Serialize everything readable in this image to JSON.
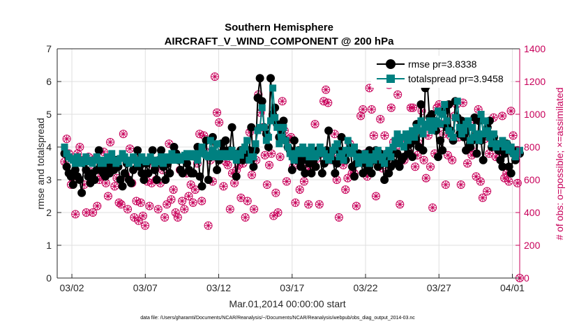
{
  "chart_data": {
    "type": "line",
    "title": "Southern Hemisphere",
    "subtitle": "AIRCRAFT_V_WIND_COMPONENT @ 200 hPa",
    "xlabel": "Mar.01,2014 00:00:00 start",
    "ylabel_left": "rmse and totalspread",
    "ylabel_right": "# of obs: o=possible; ×=assimilated",
    "xlim": [
      0,
      31.5
    ],
    "ylim_left": [
      0,
      7
    ],
    "ylim_right": [
      0,
      1400
    ],
    "x_tick_labels": [
      "03/02",
      "03/07",
      "03/12",
      "03/17",
      "03/22",
      "03/27",
      "04/01"
    ],
    "x_tick_values": [
      1,
      6,
      11,
      16,
      21,
      26,
      31
    ],
    "y_ticks_left": [
      "0",
      "1",
      "2",
      "3",
      "4",
      "5",
      "6",
      "7"
    ],
    "y_ticks_right": [
      "0",
      "200",
      "400",
      "600",
      "800",
      "1000",
      "1200",
      "1400"
    ],
    "grid": true,
    "legend_position": "top-right",
    "colors": {
      "rmse": "#000000",
      "spread": "#008080",
      "obs": "#c8005a",
      "axis": "#262626"
    },
    "series": [
      {
        "name": "rmse pr=3.8338",
        "axis": "left",
        "marker": "circle",
        "values": [
          3.8,
          3.4,
          3.2,
          3.1,
          2.85,
          3.3,
          3.1,
          3.0,
          2.6,
          3.5,
          3.3,
          3.1,
          2.9,
          3.2,
          3.0,
          3.3,
          3.9,
          3.3,
          3.2,
          3.1,
          3.4,
          3.2,
          3.5,
          3.3,
          3.6,
          3.4,
          3.0,
          2.8,
          3.2,
          3.5,
          3.0,
          2.9,
          3.3,
          3.6,
          3.9,
          3.4,
          3.2,
          3.0,
          3.5,
          3.2,
          3.6,
          3.9,
          3.3,
          3.0,
          3.6,
          3.9,
          3.4,
          3.0,
          3.5,
          3.2,
          3.7,
          4.0,
          3.8,
          3.6,
          3.3,
          3.2,
          3.7,
          3.5,
          3.3,
          3.2,
          3.2,
          3.7,
          4.0,
          3.1,
          2.8,
          3.8,
          4.2,
          3.0,
          3.7,
          4.3,
          3.8,
          3.3,
          3.6,
          4.1,
          3.9,
          4.2,
          3.8,
          3.9,
          4.6,
          3.8,
          3.1,
          3.6,
          3.9,
          3.6,
          3.7,
          3.8,
          3.9,
          4.6,
          3.4,
          3.9,
          5.5,
          6.1,
          5.4,
          4.6,
          4.4,
          4.0,
          6.1,
          5.0,
          5.2,
          4.7,
          4.3,
          4.5,
          4.8,
          4.2,
          4.0,
          3.9,
          3.3,
          4.2,
          3.6,
          3.9,
          3.4,
          3.6,
          3.2,
          3.8,
          3.5,
          3.2,
          3.6,
          3.4,
          3.9,
          3.8,
          3.2,
          3.5,
          3.9,
          4.5,
          3.8,
          3.6,
          3.2,
          3.5,
          3.9,
          4.3,
          3.7,
          3.6,
          3.9,
          4.0,
          3.4,
          3.1,
          3.5,
          3.8,
          3.6,
          3.2,
          3.5,
          3.3,
          3.9,
          3.2,
          3.6,
          3.9,
          3.4,
          3.8,
          3.5,
          3.0,
          3.6,
          3.2,
          3.4,
          3.8,
          3.5,
          3.8,
          3.4,
          3.6,
          3.7,
          4.0,
          3.8,
          4.1,
          3.7,
          4.2,
          4.7,
          4.0,
          5.3,
          3.9,
          5.8,
          5.9,
          4.9,
          5.0,
          4.8,
          4.5,
          3.7,
          4.2,
          3.9,
          5.1,
          4.6,
          5.3,
          4.5,
          4.2,
          5.4,
          4.9,
          4.4,
          4.8,
          4.3,
          3.9,
          4.6,
          4.0,
          4.2,
          4.9,
          3.8,
          4.8,
          4.2,
          3.6,
          4.4,
          4.6,
          4.8,
          4.0,
          4.3,
          4.1,
          3.9,
          3.6,
          3.4,
          3.8,
          4.1,
          3.4,
          3.2,
          3.8,
          3.6,
          3.9,
          3.8
        ]
      },
      {
        "name": "totalspread pr=3.9458",
        "axis": "left",
        "marker": "square",
        "values": [
          4.0,
          3.8,
          3.7,
          3.65,
          3.6,
          3.5,
          3.7,
          3.6,
          3.5,
          3.6,
          3.7,
          3.55,
          3.6,
          3.5,
          3.6,
          3.7,
          3.6,
          3.5,
          3.5,
          3.6,
          3.7,
          3.6,
          3.8,
          3.6,
          3.5,
          3.55,
          3.65,
          3.8,
          3.7,
          3.6,
          3.5,
          3.6,
          3.7,
          3.6,
          3.5,
          3.6,
          3.7,
          3.6,
          3.55,
          3.6,
          3.7,
          3.6,
          3.5,
          3.55,
          3.6,
          3.7,
          3.5,
          3.6,
          3.7,
          3.6,
          3.8,
          3.6,
          3.6,
          3.7,
          3.6,
          3.7,
          3.75,
          3.8,
          3.7,
          3.7,
          3.8,
          3.7,
          3.6,
          3.8,
          4.0,
          3.8,
          3.75,
          3.7,
          4.2,
          3.9,
          3.7,
          4.1,
          3.8,
          3.7,
          3.75,
          3.8,
          3.7,
          3.7,
          3.9,
          3.8,
          3.6,
          3.8,
          3.75,
          3.9,
          4.0,
          4.2,
          3.6,
          3.7,
          3.7,
          4.1,
          4.5,
          4.6,
          5.2,
          4.6,
          4.2,
          4.3,
          4.8,
          5.8,
          4.9,
          4.6,
          4.1,
          4.3,
          4.6,
          4.2,
          4.0,
          3.8,
          3.7,
          3.6,
          3.8,
          3.9,
          3.8,
          4.0,
          3.8,
          3.9,
          3.7,
          4.0,
          3.8,
          3.7,
          3.8,
          4.0,
          3.9,
          3.8,
          3.7,
          3.6,
          3.7,
          3.9,
          4.0,
          4.1,
          3.7,
          3.8,
          3.6,
          3.9,
          4.2,
          3.8,
          3.9,
          4.0,
          3.7,
          3.5,
          3.6,
          3.7,
          3.8,
          3.6,
          3.5,
          3.7,
          3.6,
          3.8,
          3.9,
          3.7,
          3.6,
          3.5,
          3.8,
          3.9,
          3.7,
          4.0,
          4.2,
          4.4,
          4.1,
          4.3,
          4.0,
          4.4,
          4.2,
          4.4,
          4.5,
          4.3,
          4.6,
          4.5,
          4.8,
          4.4,
          4.6,
          4.7,
          4.8,
          4.5,
          4.6,
          4.8,
          5.1,
          4.7,
          5.0,
          5.3,
          4.8,
          4.5,
          4.4,
          4.3,
          4.9,
          5.4,
          4.6,
          4.4,
          4.5,
          4.7,
          4.8,
          4.2,
          4.6,
          4.3,
          4.4,
          4.2,
          5.0,
          4.4,
          4.8,
          4.5,
          4.3,
          4.1,
          4.4,
          4.0,
          4.1,
          4.1,
          4.2,
          4.0,
          4.1,
          3.9,
          4.0,
          3.8,
          3.7,
          3.8,
          3.9
        ]
      },
      {
        "name": "# obs possible",
        "axis": "right",
        "marker": "open-circle",
        "values": [
          710,
          850,
          760,
          570,
          600,
          390,
          760,
          800,
          720,
          570,
          400,
          740,
          650,
          400,
          730,
          440,
          600,
          620,
          770,
          580,
          500,
          830,
          680,
          560,
          610,
          460,
          450,
          880,
          630,
          420,
          790,
          580,
          370,
          470,
          350,
          460,
          380,
          320,
          590,
          440,
          580,
          690,
          600,
          420,
          580,
          660,
          370,
          450,
          820,
          480,
          540,
          400,
          370,
          660,
          470,
          420,
          640,
          500,
          570,
          460,
          540,
          700,
          880,
          470,
          870,
          770,
          320,
          720,
          590,
          1230,
          1010,
          950,
          750,
          560,
          710,
          690,
          420,
          640,
          580,
          660,
          690,
          490,
          700,
          370,
          470,
          890,
          630,
          420,
          720,
          1120,
          1010,
          920,
          750,
          570,
          690,
          760,
          380,
          520,
          400,
          740,
          1080,
          900,
          590,
          850,
          860,
          680,
          460,
          750,
          540,
          770,
          590,
          680,
          450,
          650,
          700,
          940,
          730,
          450,
          760,
          1080,
          1150,
          1070,
          720,
          760,
          880,
          600,
          370,
          770,
          690,
          540,
          610,
          820,
          640,
          640,
          440,
          740,
          990,
          1030,
          760,
          620,
          1160,
          1030,
          870,
          500,
          720,
          970,
          670,
          870,
          760,
          1180,
          1040,
          830,
          790,
          1120,
          450,
          720,
          720,
          820,
          770,
          1040,
          1040,
          680,
          750,
          820,
          1020,
          720,
          610,
          870,
          680,
          430,
          760,
          1040,
          1060,
          940,
          880,
          570,
          750,
          870,
          720,
          990,
          1060,
          860,
          570,
          1070,
          950,
          700,
          950,
          750,
          770,
          620,
          1030,
          590,
          490,
          850,
          530,
          760,
          870,
          980,
          740,
          800,
          740,
          990,
          610,
          640,
          590,
          1020,
          870,
          780,
          580,
          0
        ]
      }
    ]
  },
  "footnote": "data file: /Users/gharamti/Documents/NCAR/Reanalysis/~/Documents/NCAR/Reanalysis/webpub/obs_diag_output_2014-03.nc"
}
